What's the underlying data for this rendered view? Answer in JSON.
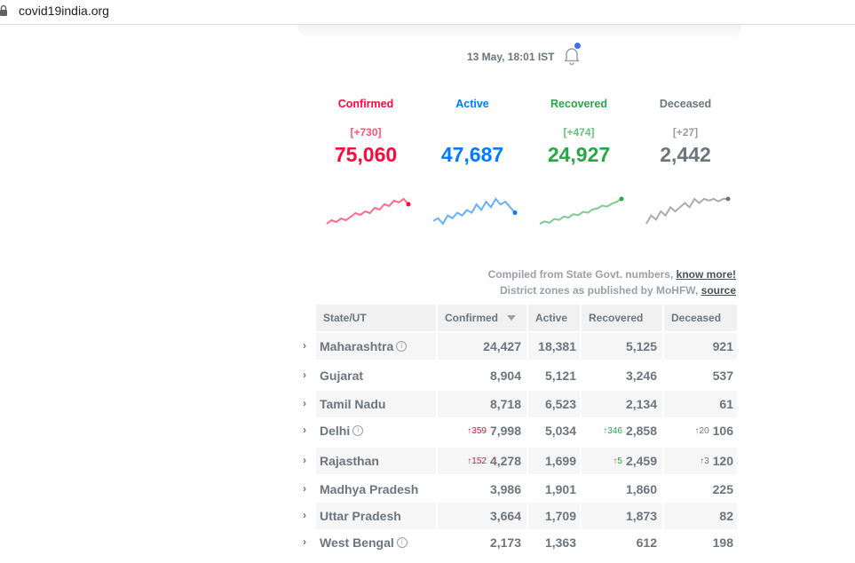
{
  "browser": {
    "url": "covid19india.org"
  },
  "header": {
    "timestamp": "13 May, 18:01 IST"
  },
  "level": [
    {
      "label": "Confirmed",
      "delta": "[+730]",
      "total": "75,060",
      "color": "#ff073a"
    },
    {
      "label": "Active",
      "delta": "",
      "total": "47,687",
      "color": "#007bff"
    },
    {
      "label": "Recovered",
      "delta": "[+474]",
      "total": "24,927",
      "color": "#28a745"
    },
    {
      "label": "Deceased",
      "delta": "[+27]",
      "total": "2,442",
      "color": "#6c757d"
    }
  ],
  "sparklines": {
    "confirmed": [
      2,
      4,
      3,
      5,
      4,
      6,
      8,
      7,
      9,
      8,
      11,
      10,
      13,
      12,
      15,
      14,
      16,
      13
    ],
    "active": [
      3,
      4,
      2,
      5,
      4,
      6,
      5,
      7,
      6,
      9,
      7,
      10,
      8,
      11,
      9,
      10,
      8,
      6
    ],
    "recovered": [
      1,
      1.5,
      1.2,
      2,
      1.8,
      2.5,
      2.3,
      3,
      2.8,
      3.5,
      3.3,
      4,
      4.2,
      4.8,
      4.6,
      5.2,
      5.6,
      6.2
    ],
    "deceased": [
      1,
      1.1,
      1.05,
      1.15,
      1.1,
      1.2,
      1.15,
      1.2,
      1.25,
      1.2,
      1.3,
      1.25,
      1.3,
      1.28,
      1.3,
      1.27,
      1.3,
      1.3
    ]
  },
  "compiled": {
    "line1": "Compiled from State Govt. numbers,",
    "link1": "know more!",
    "line2": "District zones as published by MoHFW,",
    "link2": "source"
  },
  "table": {
    "headers": {
      "state": "State/UT",
      "confirmed": "Confirmed",
      "active": "Active",
      "recovered": "Recovered",
      "deceased": "Deceased"
    },
    "rows": [
      {
        "state": "Maharashtra",
        "info": true,
        "confirmed": "24,427",
        "active": "18,381",
        "recovered": "5,125",
        "deceased": "921",
        "dconf": "",
        "drec": "",
        "ddec": ""
      },
      {
        "state": "Gujarat",
        "info": false,
        "confirmed": "8,904",
        "active": "5,121",
        "recovered": "3,246",
        "deceased": "537",
        "dconf": "",
        "drec": "",
        "ddec": ""
      },
      {
        "state": "Tamil Nadu",
        "info": false,
        "confirmed": "8,718",
        "active": "6,523",
        "recovered": "2,134",
        "deceased": "61",
        "dconf": "",
        "drec": "",
        "ddec": ""
      },
      {
        "state": "Delhi",
        "info": true,
        "confirmed": "7,998",
        "active": "5,034",
        "recovered": "2,858",
        "deceased": "106",
        "dconf": "↑359",
        "drec": "↑346",
        "ddec": "↑20"
      },
      {
        "state": "Rajasthan",
        "info": false,
        "confirmed": "4,278",
        "active": "1,699",
        "recovered": "2,459",
        "deceased": "120",
        "dconf": "↑152",
        "drec": "↑5",
        "ddec": "↑3"
      },
      {
        "state": "Madhya Pradesh",
        "info": false,
        "confirmed": "3,986",
        "active": "1,901",
        "recovered": "1,860",
        "deceased": "225",
        "dconf": "",
        "drec": "",
        "ddec": ""
      },
      {
        "state": "Uttar Pradesh",
        "info": false,
        "confirmed": "3,664",
        "active": "1,709",
        "recovered": "1,873",
        "deceased": "82",
        "dconf": "",
        "drec": "",
        "ddec": ""
      },
      {
        "state": "West Bengal",
        "info": true,
        "confirmed": "2,173",
        "active": "1,363",
        "recovered": "612",
        "deceased": "198",
        "dconf": "",
        "drec": "",
        "ddec": ""
      }
    ]
  }
}
